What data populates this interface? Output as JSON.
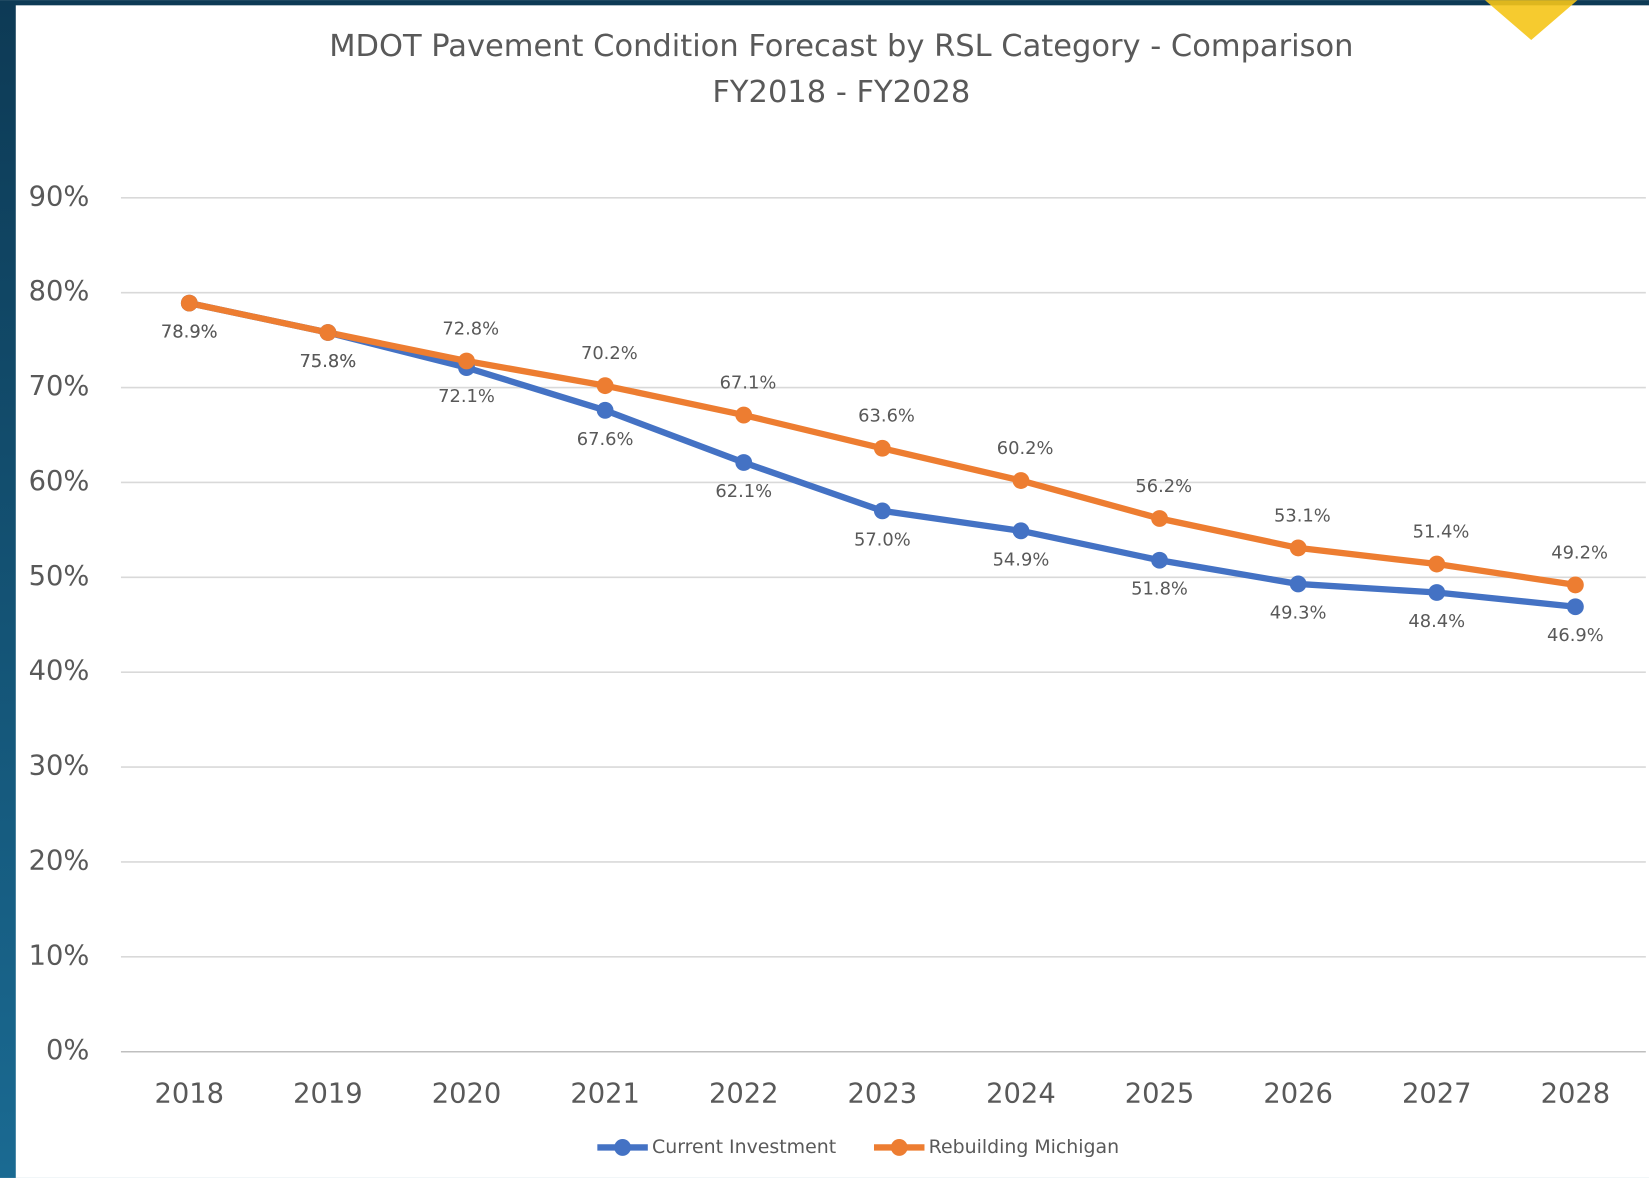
{
  "chart_data": {
    "type": "line",
    "title": "MDOT Pavement Condition Forecast by RSL Category - Comparison",
    "subtitle": "FY2018 - FY2028",
    "categories": [
      "2018",
      "2019",
      "2020",
      "2021",
      "2022",
      "2023",
      "2024",
      "2025",
      "2026",
      "2027",
      "2028"
    ],
    "series": [
      {
        "name": "Current Investment",
        "color": "#4472c4",
        "values": [
          78.9,
          75.8,
          72.1,
          67.6,
          62.1,
          57.0,
          54.9,
          51.8,
          49.3,
          48.4,
          46.9
        ],
        "value_labels": [
          "78.9%",
          "75.8%",
          "72.1%",
          "67.6%",
          "62.1%",
          "57.0%",
          "54.9%",
          "51.8%",
          "49.3%",
          "48.4%",
          "46.9%"
        ]
      },
      {
        "name": "Rebuilding Michigan",
        "color": "#ed7d31",
        "values": [
          78.9,
          75.8,
          72.8,
          70.2,
          67.1,
          63.6,
          60.2,
          56.2,
          53.1,
          51.4,
          49.2
        ],
        "value_labels": [
          "78.9%",
          "75.8%",
          "72.8%",
          "70.2%",
          "67.1%",
          "63.6%",
          "60.2%",
          "56.2%",
          "53.1%",
          "51.4%",
          "49.2%"
        ]
      }
    ],
    "ylim": [
      0,
      90
    ],
    "yticks": [
      {
        "value": 0,
        "label": "0%"
      },
      {
        "value": 10,
        "label": "10%"
      },
      {
        "value": 20,
        "label": "20%"
      },
      {
        "value": 30,
        "label": "30%"
      },
      {
        "value": 40,
        "label": "40%"
      },
      {
        "value": 50,
        "label": "50%"
      },
      {
        "value": 60,
        "label": "60%"
      },
      {
        "value": 70,
        "label": "70%"
      },
      {
        "value": 80,
        "label": "80%"
      },
      {
        "value": 90,
        "label": "90%"
      }
    ],
    "grid": true,
    "legend": "bottom"
  }
}
